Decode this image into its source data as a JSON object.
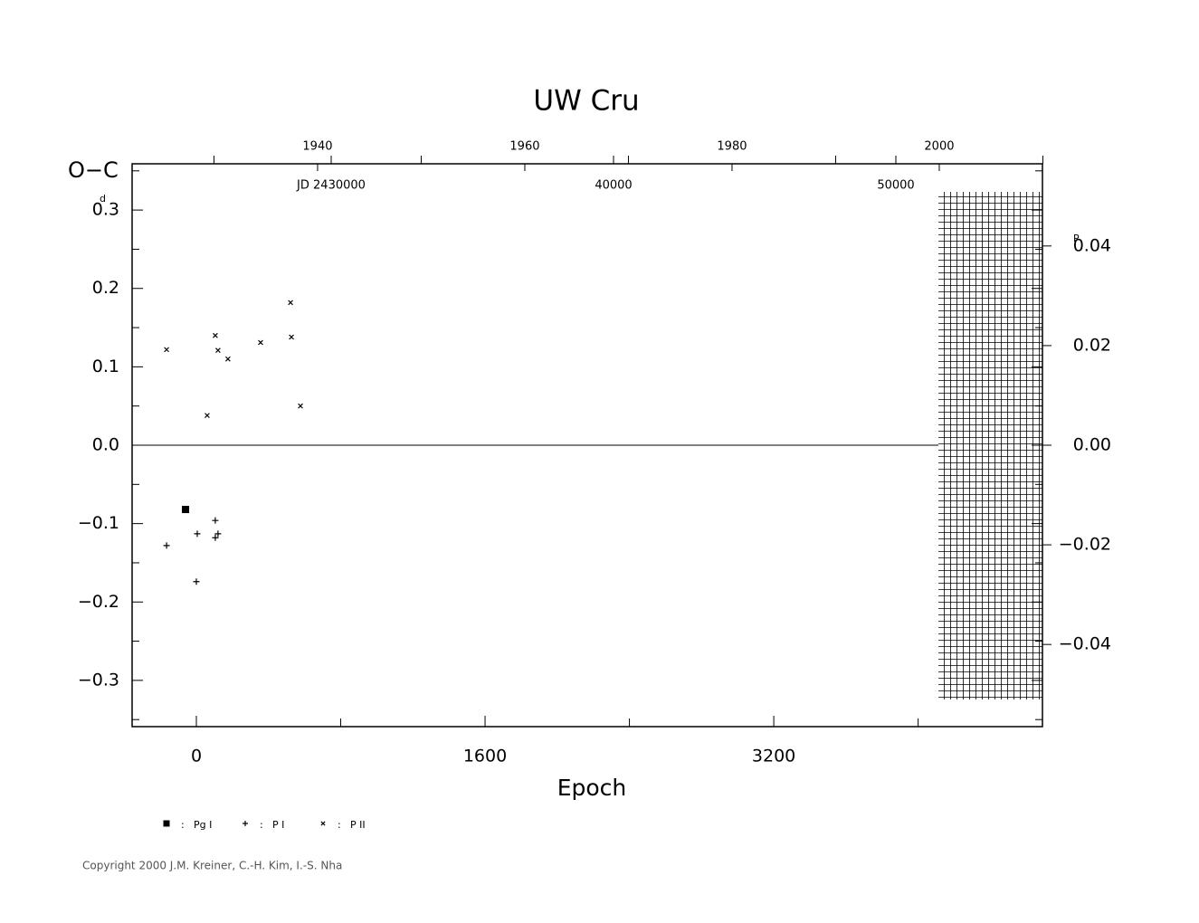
{
  "chart_data": {
    "type": "scatter",
    "title": "UW Cru",
    "x_label": "Epoch",
    "y_label": "O−C",
    "y_unit": "d",
    "y2_unit": "P",
    "xlim": [
      -356,
      4689
    ],
    "xticks": [
      0,
      1600,
      3200
    ],
    "xminor": [
      800,
      2400,
      4000
    ],
    "ylim": [
      -0.359,
      0.359
    ],
    "yticks": [
      {
        "value": -0.3,
        "label": "−0.3"
      },
      {
        "value": -0.2,
        "label": "−0.2"
      },
      {
        "value": -0.1,
        "label": "−0.1"
      },
      {
        "value": 0,
        "label": "0.0"
      },
      {
        "value": 0.1,
        "label": "0.1"
      },
      {
        "value": 0.2,
        "label": "0.2"
      },
      {
        "value": 0.3,
        "label": "0.3"
      }
    ],
    "yminor": [
      -0.35,
      -0.25,
      -0.15,
      -0.05,
      0.05,
      0.15,
      0.25,
      0.35
    ],
    "y2lim": [
      -0.0565,
      0.0565
    ],
    "y2ticks": [
      {
        "value": -0.04,
        "label": "−0.04"
      },
      {
        "value": -0.02,
        "label": "−0.02"
      },
      {
        "value": 0,
        "label": "0.00"
      },
      {
        "value": 0.02,
        "label": "0.02"
      },
      {
        "value": 0.04,
        "label": "0.04"
      }
    ],
    "year_lim": [
      1922.1,
      2009.96
    ],
    "year_ticks": [
      1940,
      1960,
      1980,
      2000
    ],
    "year_minor": [
      1930,
      1950,
      1970,
      1990,
      2010
    ],
    "jd_lim": [
      22949,
      55192
    ],
    "jd_ticks": [
      {
        "value": 30000,
        "label": "JD 2430000"
      },
      {
        "value": 40000,
        "label": "40000"
      },
      {
        "value": 50000,
        "label": "50000"
      }
    ],
    "series": [
      {
        "name": "Pg I",
        "marker": "square",
        "color": "#000000",
        "x": [
          -60
        ],
        "values": [
          -0.082
        ]
      },
      {
        "name": "P I",
        "marker": "plus",
        "color": "#000000",
        "x": [
          -165,
          5,
          0,
          105,
          105,
          120
        ],
        "values": [
          -0.128,
          -0.113,
          -0.174,
          -0.096,
          -0.118,
          -0.113
        ]
      },
      {
        "name": "P II",
        "marker": "cross",
        "color": "#000000",
        "x": [
          -165,
          60,
          105,
          120,
          175,
          356,
          522,
          527,
          577
        ],
        "values": [
          0.122,
          0.038,
          0.14,
          0.121,
          0.11,
          0.131,
          0.182,
          0.138,
          0.05
        ]
      }
    ],
    "copyright": "Copyright 2000 J.M. Kreiner, C.-H. Kim, I.-S. Nha"
  }
}
